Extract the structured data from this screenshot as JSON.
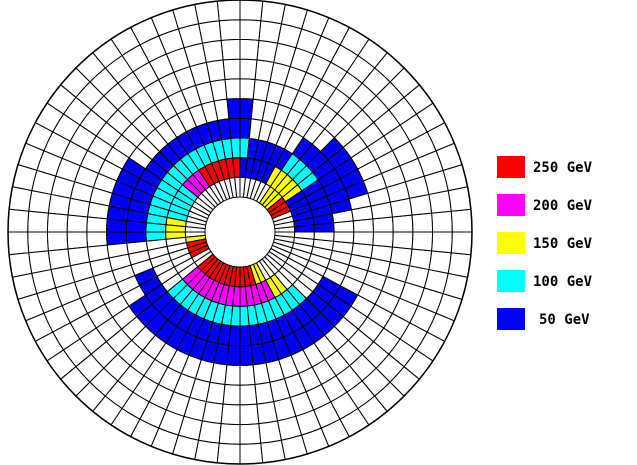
{
  "legend": [
    {
      "label": "250 GeV",
      "color": "#ff0000"
    },
    {
      "label": "200 GeV",
      "color": "#ff00ff"
    },
    {
      "label": "150 GeV",
      "color": "#ffff00"
    },
    {
      "label": "100 GeV",
      "color": "#00ffff"
    },
    {
      "label": "50 GeV",
      "color": "#0000ff"
    }
  ],
  "grid": {
    "rings": 10,
    "segments": 64
  },
  "energy_colors": {
    "250": "#ff0000",
    "200": "#ff00ff",
    "150": "#ffff00",
    "100": "#00ffff",
    "50": "#0000ff"
  },
  "hits": [
    {
      "ring": 0,
      "energy": 250,
      "segments": [
        [
          39,
          50
        ],
        [
          4,
          6
        ],
        [
          34,
          36
        ]
      ]
    },
    {
      "ring": 0,
      "energy": 150,
      "segments": [
        [
          7,
          9
        ],
        [
          51,
          52
        ],
        [
          33,
          33
        ]
      ]
    },
    {
      "ring": 1,
      "energy": 250,
      "segments": [
        [
          16,
          21
        ]
      ]
    },
    {
      "ring": 1,
      "energy": 200,
      "segments": [
        [
          39,
          52
        ],
        [
          22,
          24
        ]
      ]
    },
    {
      "ring": 1,
      "energy": 150,
      "segments": [
        [
          6,
          10
        ],
        [
          53,
          54
        ],
        [
          30,
          32
        ]
      ]
    },
    {
      "ring": 1,
      "energy": 100,
      "segments": [
        [
          25,
          29
        ]
      ]
    },
    {
      "ring": 1,
      "energy": 50,
      "segments": [
        [
          0,
          5
        ],
        [
          11,
          15
        ]
      ]
    },
    {
      "ring": 2,
      "energy": 100,
      "segments": [
        [
          15,
          32
        ],
        [
          39,
          55
        ],
        [
          6,
          9
        ]
      ]
    },
    {
      "ring": 2,
      "energy": 50,
      "segments": [
        [
          0,
          5
        ],
        [
          10,
          14
        ]
      ]
    },
    {
      "ring": 3,
      "energy": 50,
      "segments": [
        [
          15,
          32
        ],
        [
          36,
          58
        ],
        [
          2,
          9
        ]
      ]
    },
    {
      "ring": 4,
      "energy": 50,
      "segments": [
        [
          15,
          16
        ],
        [
          26,
          32
        ],
        [
          38,
          58
        ],
        [
          3,
          7
        ]
      ]
    }
  ]
}
